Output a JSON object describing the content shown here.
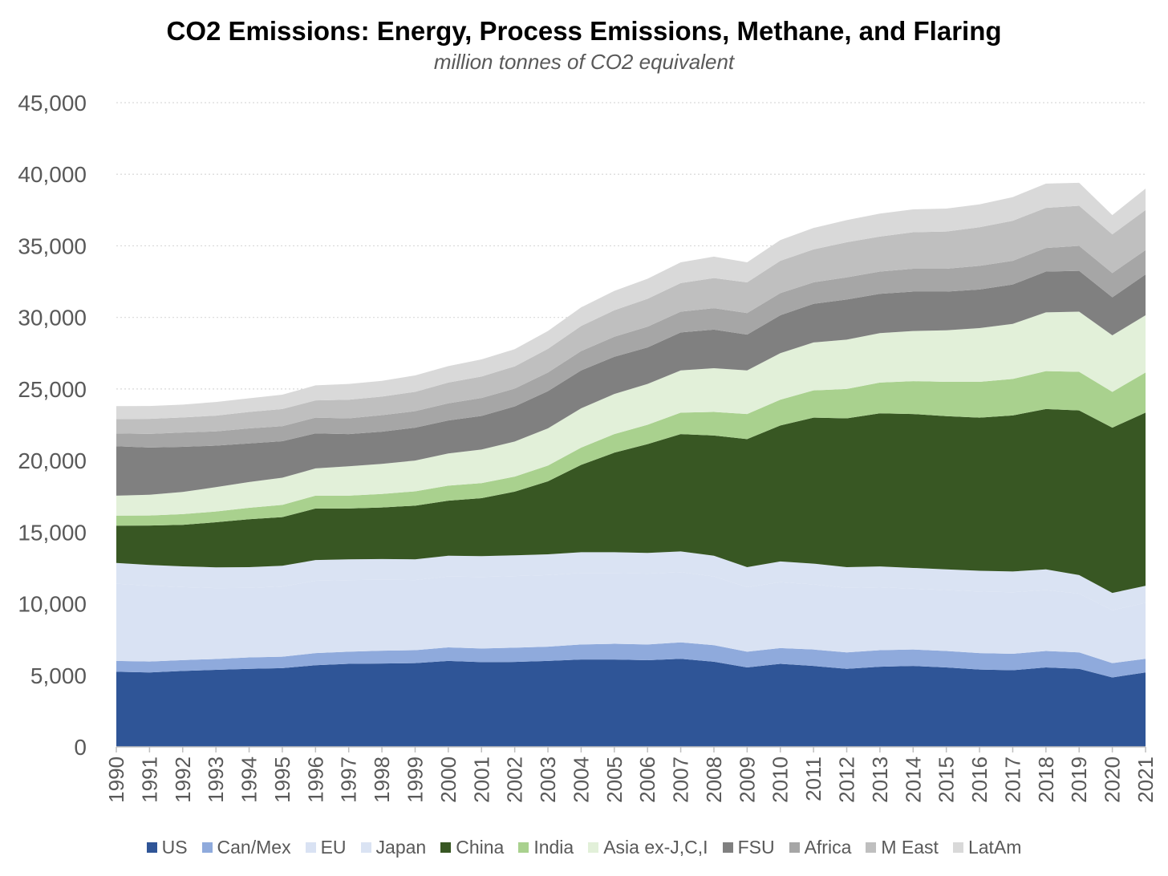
{
  "chart_data": {
    "type": "area",
    "stacked": true,
    "title": "CO2 Emissions: Energy, Process Emissions, Methane, and Flaring",
    "subtitle": "million tonnes of CO2 equivalent",
    "xlabel": "",
    "ylabel": "",
    "ylim": [
      0,
      45000
    ],
    "yticks": [
      0,
      5000,
      10000,
      15000,
      20000,
      25000,
      30000,
      35000,
      40000,
      45000
    ],
    "ytick_labels": [
      "0",
      "5,000",
      "10,000",
      "15,000",
      "20,000",
      "25,000",
      "30,000",
      "35,000",
      "40,000",
      "45,000"
    ],
    "grid": true,
    "legend_position": "bottom",
    "x": [
      "1990",
      "1991",
      "1992",
      "1993",
      "1994",
      "1995",
      "1996",
      "1997",
      "1998",
      "1999",
      "2000",
      "2001",
      "2002",
      "2003",
      "2004",
      "2005",
      "2006",
      "2007",
      "2008",
      "2009",
      "2010",
      "2011",
      "2012",
      "2013",
      "2014",
      "2015",
      "2016",
      "2017",
      "2018",
      "2019",
      "2020",
      "2021"
    ],
    "series": [
      {
        "name": "US",
        "color": "#2f5597",
        "values": [
          5250,
          5200,
          5300,
          5380,
          5450,
          5500,
          5700,
          5800,
          5820,
          5850,
          6000,
          5920,
          5930,
          6000,
          6100,
          6100,
          6050,
          6150,
          5950,
          5550,
          5800,
          5650,
          5450,
          5600,
          5650,
          5550,
          5400,
          5350,
          5550,
          5450,
          4850,
          5200
        ]
      },
      {
        "name": "Can/Mex",
        "color": "#8faadc",
        "values": [
          750,
          760,
          760,
          760,
          800,
          800,
          850,
          850,
          900,
          900,
          950,
          950,
          1000,
          1000,
          1050,
          1100,
          1100,
          1150,
          1150,
          1100,
          1100,
          1150,
          1150,
          1150,
          1150,
          1150,
          1150,
          1150,
          1150,
          1150,
          1000,
          950
        ]
      },
      {
        "name": "EU",
        "color": "#d9e2f3",
        "values": [
          5400,
          5300,
          5100,
          4950,
          4850,
          4900,
          5050,
          5000,
          4950,
          4900,
          4950,
          5000,
          5000,
          5000,
          5000,
          4950,
          4950,
          4900,
          4800,
          4500,
          4600,
          4550,
          4500,
          4400,
          4250,
          4250,
          4300,
          4300,
          4250,
          4100,
          3700,
          3900
        ]
      },
      {
        "name": "Japan",
        "color": "#dae3f3",
        "values": [
          1450,
          1450,
          1450,
          1450,
          1450,
          1450,
          1450,
          1450,
          1450,
          1450,
          1450,
          1450,
          1450,
          1450,
          1450,
          1450,
          1450,
          1450,
          1450,
          1400,
          1450,
          1450,
          1450,
          1450,
          1450,
          1450,
          1450,
          1450,
          1450,
          1300,
          1200,
          1200
        ]
      },
      {
        "name": "China",
        "color": "#385723",
        "values": [
          2600,
          2750,
          2900,
          3150,
          3350,
          3400,
          3600,
          3550,
          3600,
          3750,
          3850,
          4050,
          4450,
          5100,
          6100,
          6950,
          7600,
          8200,
          8400,
          8950,
          9500,
          10200,
          10400,
          10700,
          10750,
          10700,
          10700,
          10900,
          11200,
          11500,
          11550,
          12100
        ]
      },
      {
        "name": "India",
        "color": "#a9d18e",
        "values": [
          700,
          700,
          750,
          750,
          800,
          850,
          900,
          900,
          950,
          1000,
          1050,
          1050,
          1050,
          1100,
          1200,
          1300,
          1350,
          1500,
          1650,
          1750,
          1800,
          1900,
          2050,
          2150,
          2300,
          2400,
          2500,
          2550,
          2650,
          2700,
          2500,
          2800
        ]
      },
      {
        "name": "Asia ex-J,C,I",
        "color": "#e2f0d9",
        "values": [
          1400,
          1450,
          1550,
          1700,
          1800,
          1900,
          1900,
          2050,
          2100,
          2150,
          2250,
          2350,
          2450,
          2600,
          2750,
          2800,
          2850,
          2950,
          3050,
          3050,
          3250,
          3350,
          3450,
          3450,
          3500,
          3600,
          3750,
          3850,
          4100,
          4200,
          3950,
          4000
        ]
      },
      {
        "name": "FSU",
        "color": "#808080",
        "values": [
          3450,
          3300,
          3150,
          2900,
          2700,
          2550,
          2450,
          2250,
          2250,
          2300,
          2300,
          2350,
          2450,
          2600,
          2650,
          2600,
          2550,
          2650,
          2700,
          2500,
          2650,
          2700,
          2800,
          2750,
          2750,
          2700,
          2700,
          2750,
          2850,
          2850,
          2650,
          2850
        ]
      },
      {
        "name": "Africa",
        "color": "#a6a6a6",
        "values": [
          900,
          950,
          1000,
          1000,
          1050,
          1050,
          1100,
          1100,
          1150,
          1150,
          1200,
          1250,
          1250,
          1300,
          1350,
          1400,
          1450,
          1450,
          1500,
          1500,
          1550,
          1500,
          1550,
          1550,
          1600,
          1600,
          1650,
          1650,
          1650,
          1750,
          1700,
          1700
        ]
      },
      {
        "name": "M East",
        "color": "#bfbfbf",
        "values": [
          1000,
          1050,
          1050,
          1100,
          1150,
          1200,
          1200,
          1300,
          1300,
          1350,
          1450,
          1500,
          1550,
          1650,
          1750,
          1850,
          1950,
          2000,
          2100,
          2150,
          2250,
          2300,
          2450,
          2450,
          2550,
          2600,
          2700,
          2800,
          2800,
          2800,
          2700,
          2800
        ]
      },
      {
        "name": "LatAm",
        "color": "#d9d9d9",
        "values": [
          900,
          900,
          900,
          950,
          950,
          1000,
          1050,
          1100,
          1100,
          1150,
          1150,
          1200,
          1200,
          1250,
          1300,
          1350,
          1400,
          1450,
          1500,
          1400,
          1450,
          1500,
          1550,
          1600,
          1600,
          1600,
          1600,
          1650,
          1700,
          1600,
          1350,
          1500
        ]
      }
    ]
  }
}
